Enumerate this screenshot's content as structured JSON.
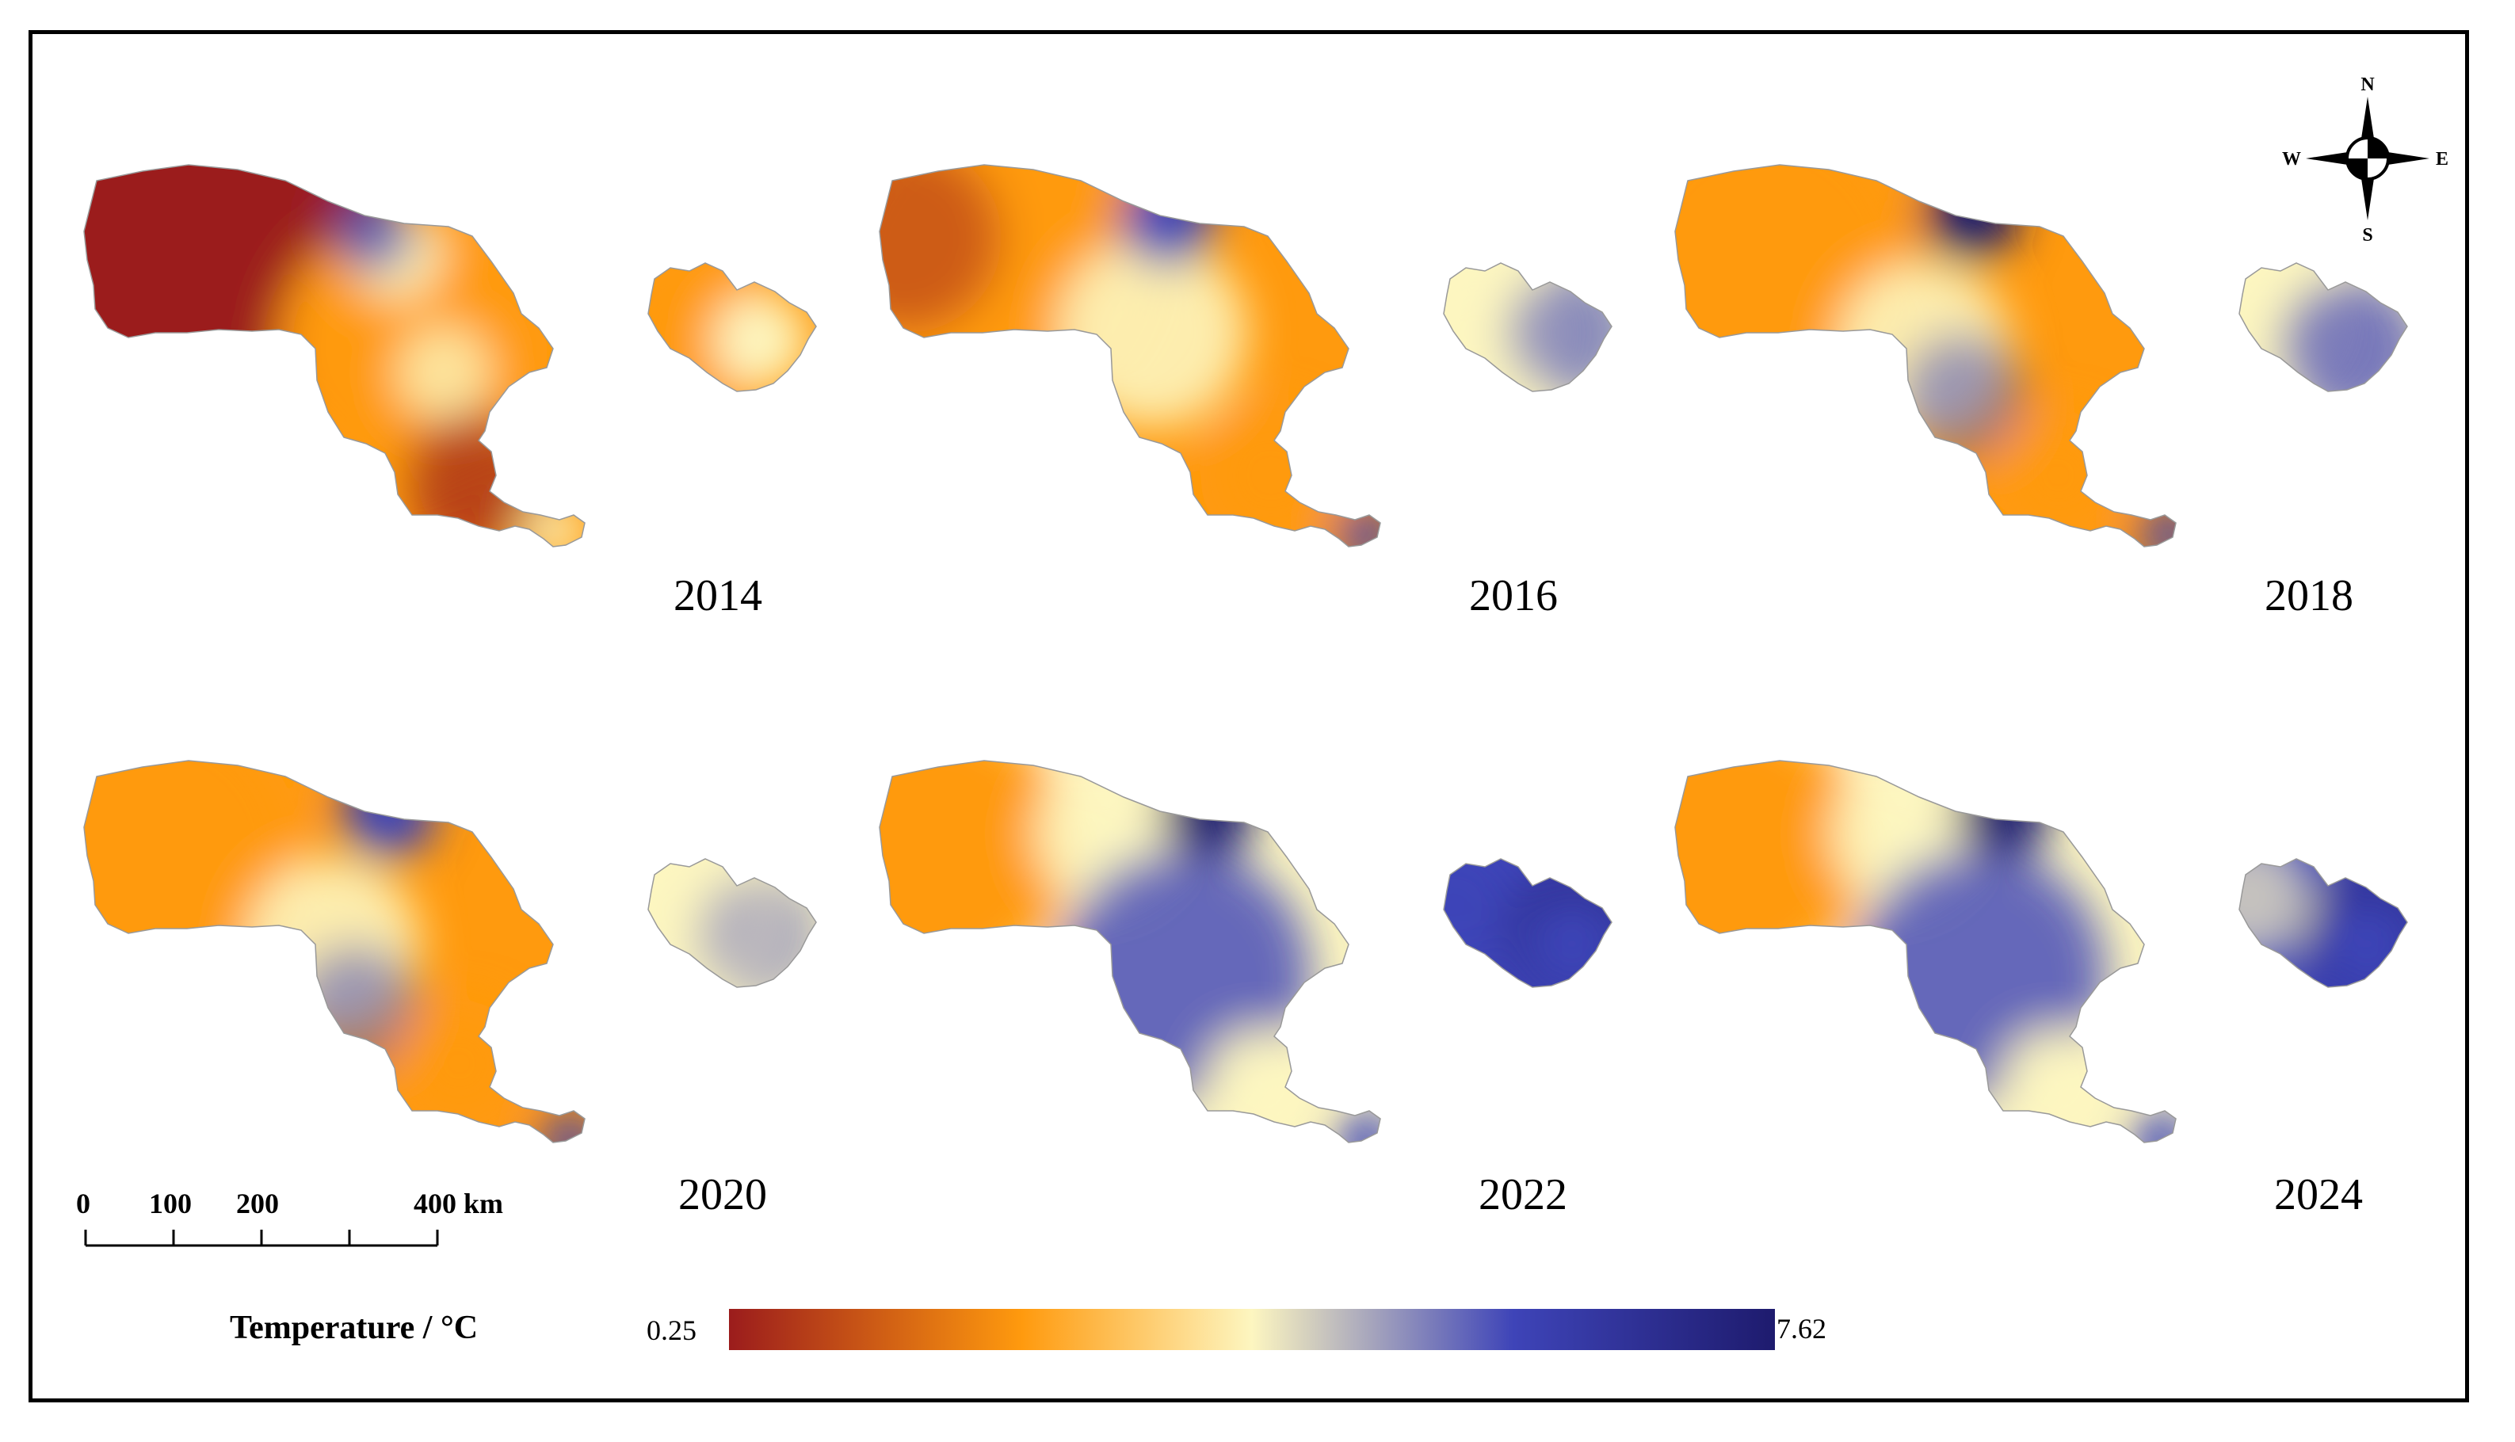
{
  "maps": [
    {
      "year": "2014"
    },
    {
      "year": "2016"
    },
    {
      "year": "2018"
    },
    {
      "year": "2020"
    },
    {
      "year": "2022"
    },
    {
      "year": "2024"
    }
  ],
  "compass": {
    "north": "N",
    "south": "S",
    "east": "E",
    "west": "W"
  },
  "scale_bar": {
    "ticks": [
      "0",
      "100",
      "200",
      "400 km"
    ]
  },
  "legend": {
    "title": "Temperature / °C",
    "min": "0.25",
    "max": "7.62",
    "colors": [
      "#9b1c1c",
      "#ff9a0e",
      "#fdf6c0",
      "#3e44b8",
      "#1e1b6e"
    ]
  }
}
